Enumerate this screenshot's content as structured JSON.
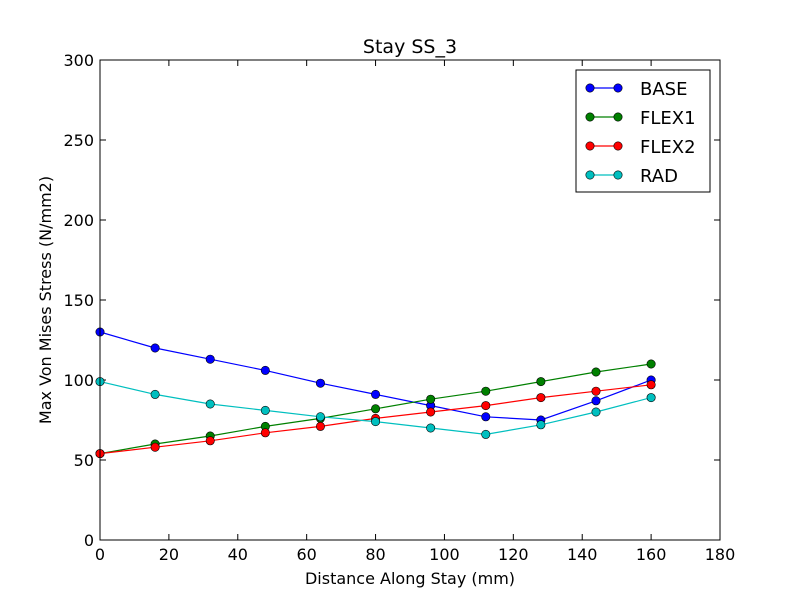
{
  "chart_data": {
    "type": "line",
    "title": "Stay SS_3",
    "xlabel": "Distance Along Stay (mm)",
    "ylabel": "Max Von Mises Stress (N/mm2)",
    "xlim": [
      0,
      180
    ],
    "ylim": [
      0,
      300
    ],
    "xticks": [
      0,
      20,
      40,
      60,
      80,
      100,
      120,
      140,
      160,
      180
    ],
    "yticks": [
      0,
      50,
      100,
      150,
      200,
      250,
      300
    ],
    "grid": false,
    "legend_position": "top-right",
    "x": [
      0,
      16,
      32,
      48,
      64,
      80,
      96,
      112,
      128,
      144,
      160
    ],
    "series": [
      {
        "name": "BASE",
        "color": "#0000ff",
        "values": [
          130,
          120,
          113,
          106,
          98,
          91,
          84,
          77,
          75,
          87,
          100
        ]
      },
      {
        "name": "FLEX1",
        "color": "#008000",
        "values": [
          54,
          60,
          65,
          71,
          76,
          82,
          88,
          93,
          99,
          105,
          110
        ]
      },
      {
        "name": "FLEX2",
        "color": "#ff0000",
        "values": [
          54,
          58,
          62,
          67,
          71,
          76,
          80,
          84,
          89,
          93,
          97
        ]
      },
      {
        "name": "RAD",
        "color": "#00bfbf",
        "values": [
          99,
          91,
          85,
          81,
          77,
          74,
          70,
          66,
          72,
          80,
          89
        ]
      }
    ]
  }
}
